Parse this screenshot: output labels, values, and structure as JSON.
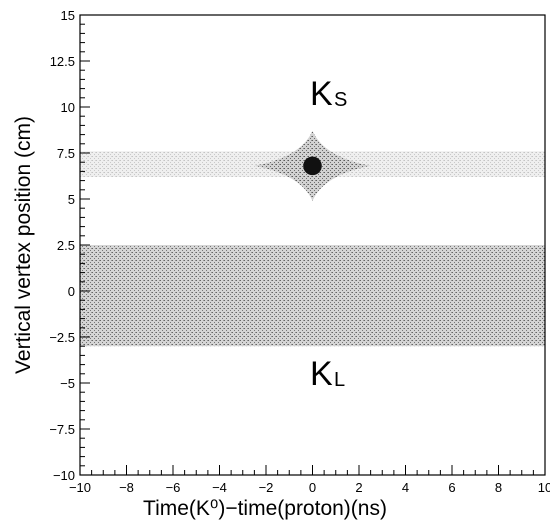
{
  "chart_data": {
    "type": "scatter",
    "xlabel": "Time(K⁰)−time(proton)(ns)",
    "ylabel": "Vertical vertex position (cm)",
    "xlim": [
      -10,
      10
    ],
    "ylim": [
      -10,
      15
    ],
    "xticks": [
      {
        "value": -10,
        "label": "−10"
      },
      {
        "value": -8,
        "label": "−8"
      },
      {
        "value": -6,
        "label": "−6"
      },
      {
        "value": -4,
        "label": "−4"
      },
      {
        "value": -2,
        "label": "−2"
      },
      0,
      2,
      4,
      6,
      8,
      10
    ],
    "yticks": [
      {
        "value": -10,
        "label": "−10"
      },
      {
        "value": -7.5,
        "label": "−7.5"
      },
      {
        "value": -5,
        "label": "−5"
      },
      {
        "value": -2.5,
        "label": "−2.5"
      },
      0,
      2.5,
      5,
      7.5,
      10,
      12.5,
      15
    ],
    "annotations": [
      {
        "text": "K",
        "sub": "S"
      },
      {
        "text": "K",
        "sub": "L"
      }
    ],
    "regions": {
      "kl_band": [
        -3,
        2.5
      ],
      "ks_band": [
        6.2,
        7.6
      ],
      "ks_peak": {
        "x": 0,
        "y": 6.8,
        "dx": 2.5,
        "dy": 1.9
      },
      "ks_core": {
        "x": 0,
        "y": 6.8,
        "r": 0.4
      }
    },
    "color": "#9a9a9a"
  }
}
